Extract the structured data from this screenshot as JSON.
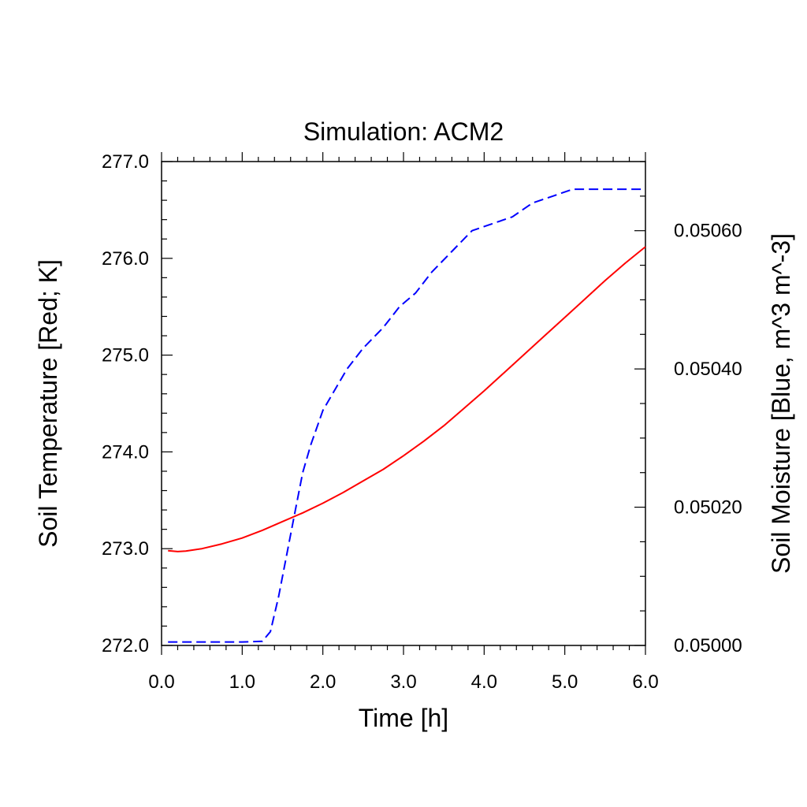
{
  "chart_data": {
    "type": "line",
    "title": "Simulation: ACM2",
    "xlabel": "Time [h]",
    "ylabel_left": "Soil Temperature [Red; K]",
    "ylabel_right": "Soil Moisture [Blue, m^3 m^-3]",
    "xlim": [
      0.0,
      6.0
    ],
    "ylim_left": [
      272.0,
      277.0
    ],
    "ylim_right": [
      0.05,
      0.0507
    ],
    "x_ticks": [
      "0.0",
      "1.0",
      "2.0",
      "3.0",
      "4.0",
      "5.0",
      "6.0"
    ],
    "y_left_ticks": [
      "272.0",
      "273.0",
      "274.0",
      "275.0",
      "276.0",
      "277.0"
    ],
    "y_right_ticks": [
      "0.05000",
      "0.05020",
      "0.05040",
      "0.05060"
    ],
    "grid": false,
    "series": [
      {
        "axis": "left",
        "color": "#ff0000",
        "style": "solid",
        "x": [
          0.08,
          0.2,
          0.3,
          0.5,
          0.75,
          1.0,
          1.25,
          1.5,
          1.75,
          2.0,
          2.25,
          2.5,
          2.75,
          3.0,
          3.25,
          3.5,
          3.75,
          4.0,
          4.25,
          4.5,
          4.75,
          5.0,
          5.25,
          5.5,
          5.75,
          6.0
        ],
        "y": [
          272.98,
          272.97,
          272.975,
          273.0,
          273.05,
          273.11,
          273.19,
          273.28,
          273.37,
          273.47,
          273.58,
          273.7,
          273.82,
          273.96,
          274.11,
          274.27,
          274.45,
          274.63,
          274.82,
          275.01,
          275.2,
          275.39,
          275.58,
          275.77,
          275.95,
          276.12
        ]
      },
      {
        "axis": "right",
        "color": "#0000ff",
        "style": "dashed",
        "x": [
          0.08,
          0.5,
          1.0,
          1.25,
          1.35,
          1.45,
          1.55,
          1.65,
          1.75,
          1.85,
          2.0,
          2.15,
          2.3,
          2.5,
          2.75,
          2.95,
          3.15,
          3.35,
          3.6,
          3.85,
          4.1,
          4.35,
          4.6,
          4.85,
          5.1,
          5.5,
          6.0
        ],
        "y": [
          0.050005,
          0.050005,
          0.050005,
          0.050006,
          0.05002,
          0.05007,
          0.05013,
          0.05019,
          0.05025,
          0.05029,
          0.05034,
          0.05037,
          0.0504,
          0.05043,
          0.05046,
          0.05049,
          0.05051,
          0.05054,
          0.05057,
          0.0506,
          0.05061,
          0.05062,
          0.05064,
          0.05065,
          0.05066,
          0.05066,
          0.05066
        ]
      }
    ]
  }
}
